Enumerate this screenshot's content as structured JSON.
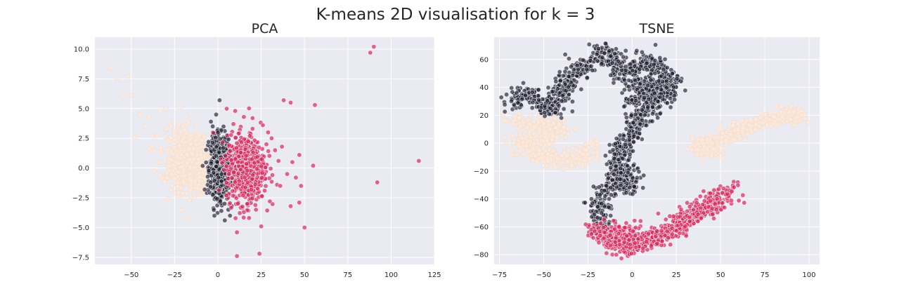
{
  "figure": {
    "suptitle": "K-means 2D visualisation for k = 3",
    "background": "#ffffff",
    "axes_facecolor": "#eaeaf2",
    "grid_color": "#ffffff",
    "cluster_colors": [
      "#fbe9dd",
      "#1c1c2e",
      "#d6285c"
    ]
  },
  "chart_data": [
    {
      "type": "scatter",
      "title": "PCA",
      "xlim": [
        -71,
        125
      ],
      "ylim": [
        -8.1,
        11.0
      ],
      "xticks": [
        -50,
        -25,
        0,
        25,
        50,
        75,
        100,
        125
      ],
      "yticks": [
        -7.5,
        -5.0,
        -2.5,
        0.0,
        2.5,
        5.0,
        7.5,
        10.0
      ],
      "xtick_labels": [
        "−50",
        "−25",
        "0",
        "25",
        "50",
        "75",
        "100",
        "125"
      ],
      "ytick_labels": [
        "−7.5",
        "−5.0",
        "−2.5",
        "0.0",
        "2.5",
        "5.0",
        "7.5",
        "10.0"
      ],
      "grid": true,
      "series": [
        {
          "cluster": 0,
          "points": [
            [
              -62,
              8.4
            ],
            [
              -58,
              7.5
            ],
            [
              -52,
              7.7
            ],
            [
              -55,
              6.0
            ],
            [
              -50,
              6.1
            ],
            [
              -45,
              4.5
            ],
            [
              -40,
              4.3
            ],
            [
              -42,
              3.5
            ],
            [
              -33,
              4.8
            ],
            [
              -28,
              3.8
            ],
            [
              -30,
              5.0
            ],
            [
              -22,
              5.1
            ],
            [
              -35,
              2.7
            ],
            [
              -25,
              3.2
            ],
            [
              -20,
              3.5
            ],
            [
              -48,
              2.6
            ],
            [
              -38,
              1.8
            ]
          ],
          "clusters": [
            {
              "cx": -14,
              "cy": 0.2,
              "sx": 6.5,
              "sy": 1.1,
              "n": 650
            },
            {
              "cx": -22,
              "cy": 1.3,
              "sx": 6,
              "sy": 1.3,
              "n": 140
            }
          ]
        },
        {
          "cluster": 1,
          "points": [
            [
              1,
              5.7
            ],
            [
              -1,
              4.5
            ],
            [
              -3,
              3.5
            ],
            [
              2,
              3.2
            ],
            [
              -2,
              -4.0
            ],
            [
              2,
              -3.6
            ],
            [
              6,
              -3.5
            ],
            [
              7,
              -4.0
            ],
            [
              8,
              -3.2
            ],
            [
              4,
              -4.4
            ],
            [
              -4,
              3.9
            ],
            [
              0,
              3.0
            ]
          ],
          "clusters": [
            {
              "cx": 1,
              "cy": 0,
              "sx": 2.6,
              "sy": 1.2,
              "n": 850
            }
          ]
        },
        {
          "cluster": 2,
          "points": [
            [
              88,
              9.7
            ],
            [
              90,
              10.2
            ],
            [
              116,
              0.6
            ],
            [
              92,
              -1.2
            ],
            [
              38,
              5.7
            ],
            [
              42,
              5.5
            ],
            [
              56,
              5.3
            ],
            [
              47,
              1.1
            ],
            [
              55,
              0.2
            ],
            [
              50,
              -5.0
            ],
            [
              42,
              -3.2
            ],
            [
              47,
              -2.9
            ],
            [
              24,
              -7.2
            ],
            [
              11,
              -7.4
            ],
            [
              11,
              -5.4
            ],
            [
              25,
              -4.9
            ],
            [
              10,
              4.8
            ],
            [
              15,
              4.3
            ],
            [
              20,
              4.2
            ],
            [
              26,
              3.6
            ],
            [
              29,
              3.0
            ],
            [
              31,
              2.5
            ],
            [
              33,
              1.5
            ],
            [
              35,
              0.6
            ],
            [
              40,
              -0.5
            ],
            [
              45,
              -0.8
            ],
            [
              48,
              -1.5
            ],
            [
              37,
              1.8
            ],
            [
              30,
              -2.8
            ],
            [
              18,
              -4.2
            ],
            [
              15,
              -3.7
            ],
            [
              22,
              -3.5
            ],
            [
              9,
              3.7
            ],
            [
              12,
              2.9
            ],
            [
              20,
              3.3
            ],
            [
              28,
              2.0
            ],
            [
              36,
              -1.5
            ],
            [
              43,
              0.5
            ],
            [
              27,
              -1.9
            ],
            [
              17,
              -3.0
            ]
          ],
          "clusters": [
            {
              "cx": 16,
              "cy": 0,
              "sx": 5.5,
              "sy": 1.4,
              "n": 650
            }
          ]
        }
      ]
    },
    {
      "type": "scatter",
      "title": "TSNE",
      "xlim": [
        -78,
        106
      ],
      "ylim": [
        -87,
        76
      ],
      "xticks": [
        -75,
        -50,
        -25,
        0,
        25,
        50,
        75,
        100
      ],
      "yticks": [
        -80,
        -60,
        -40,
        -20,
        0,
        20,
        40,
        60
      ],
      "xtick_labels": [
        "−75",
        "−50",
        "−25",
        "0",
        "25",
        "50",
        "75",
        "100"
      ],
      "ytick_labels": [
        "−80",
        "−60",
        "−40",
        "−20",
        "0",
        "20",
        "40",
        "60"
      ],
      "grid": true,
      "series": [
        {
          "cluster": 0,
          "path": [
            [
              -68,
              17
            ],
            [
              -60,
              15
            ],
            [
              -52,
              13
            ],
            [
              -45,
              12
            ],
            [
              -40,
              10
            ],
            [
              -48,
              5
            ],
            [
              -58,
              2
            ],
            [
              -65,
              0
            ],
            [
              -55,
              -5
            ],
            [
              -45,
              -10
            ],
            [
              -38,
              -14
            ],
            [
              -30,
              -12
            ],
            [
              -25,
              -5
            ],
            [
              -22,
              0
            ]
          ],
          "path_n": 420,
          "path_spread": 3.5,
          "path2": [
            [
              38,
              -5
            ],
            [
              45,
              0
            ],
            [
              52,
              5
            ],
            [
              60,
              9
            ],
            [
              68,
              13
            ],
            [
              74,
              16
            ],
            [
              80,
              18
            ],
            [
              88,
              20
            ],
            [
              96,
              20
            ]
          ],
          "path2_n": 360,
          "path2_spread": 2.6,
          "clusters": [
            {
              "cx": 42,
              "cy": -4,
              "sx": 4,
              "sy": 4,
              "n": 90
            }
          ]
        },
        {
          "cluster": 1,
          "path": [
            [
              -68,
              27
            ],
            [
              -64,
              34
            ],
            [
              -58,
              36
            ],
            [
              -52,
              30
            ],
            [
              -48,
              23
            ],
            [
              -42,
              28
            ],
            [
              -40,
              37
            ],
            [
              -35,
              47
            ],
            [
              -28,
              54
            ],
            [
              -22,
              61
            ],
            [
              -18,
              67
            ],
            [
              -12,
              61
            ],
            [
              -8,
              53
            ],
            [
              -4,
              50
            ],
            [
              0,
              53
            ],
            [
              4,
              57
            ],
            [
              10,
              60
            ],
            [
              14,
              55
            ],
            [
              18,
              48
            ],
            [
              22,
              44
            ],
            [
              20,
              38
            ],
            [
              15,
              32
            ],
            [
              10,
              27
            ],
            [
              6,
              22
            ],
            [
              4,
              16
            ],
            [
              2,
              10
            ],
            [
              -2,
              4
            ],
            [
              -6,
              -4
            ],
            [
              -8,
              -12
            ],
            [
              -8,
              -20
            ],
            [
              -10,
              -28
            ],
            [
              -14,
              -35
            ],
            [
              -18,
              -43
            ],
            [
              -19,
              -50
            ],
            [
              -18,
              -56
            ],
            [
              -14,
              -61
            ]
          ],
          "path_n": 1100,
          "path_spread": 3.3,
          "clusters": [
            {
              "cx": 8,
              "cy": 35,
              "sx": 6,
              "sy": 8,
              "n": 250
            },
            {
              "cx": -3,
              "cy": -25,
              "sx": 4,
              "sy": 5,
              "n": 110
            }
          ]
        },
        {
          "cluster": 2,
          "path": [
            [
              -20,
              -62
            ],
            [
              -15,
              -68
            ],
            [
              -8,
              -72
            ],
            [
              0,
              -73
            ],
            [
              8,
              -71
            ],
            [
              16,
              -67
            ],
            [
              22,
              -62
            ],
            [
              28,
              -57
            ],
            [
              34,
              -52
            ],
            [
              40,
              -47
            ],
            [
              46,
              -42
            ],
            [
              52,
              -37
            ],
            [
              56,
              -33
            ]
          ],
          "path_n": 620,
          "path_spread": 3.4,
          "clusters": [
            {
              "cx": -4,
              "cy": -68,
              "sx": 6,
              "sy": 5,
              "n": 160
            }
          ]
        }
      ]
    }
  ]
}
